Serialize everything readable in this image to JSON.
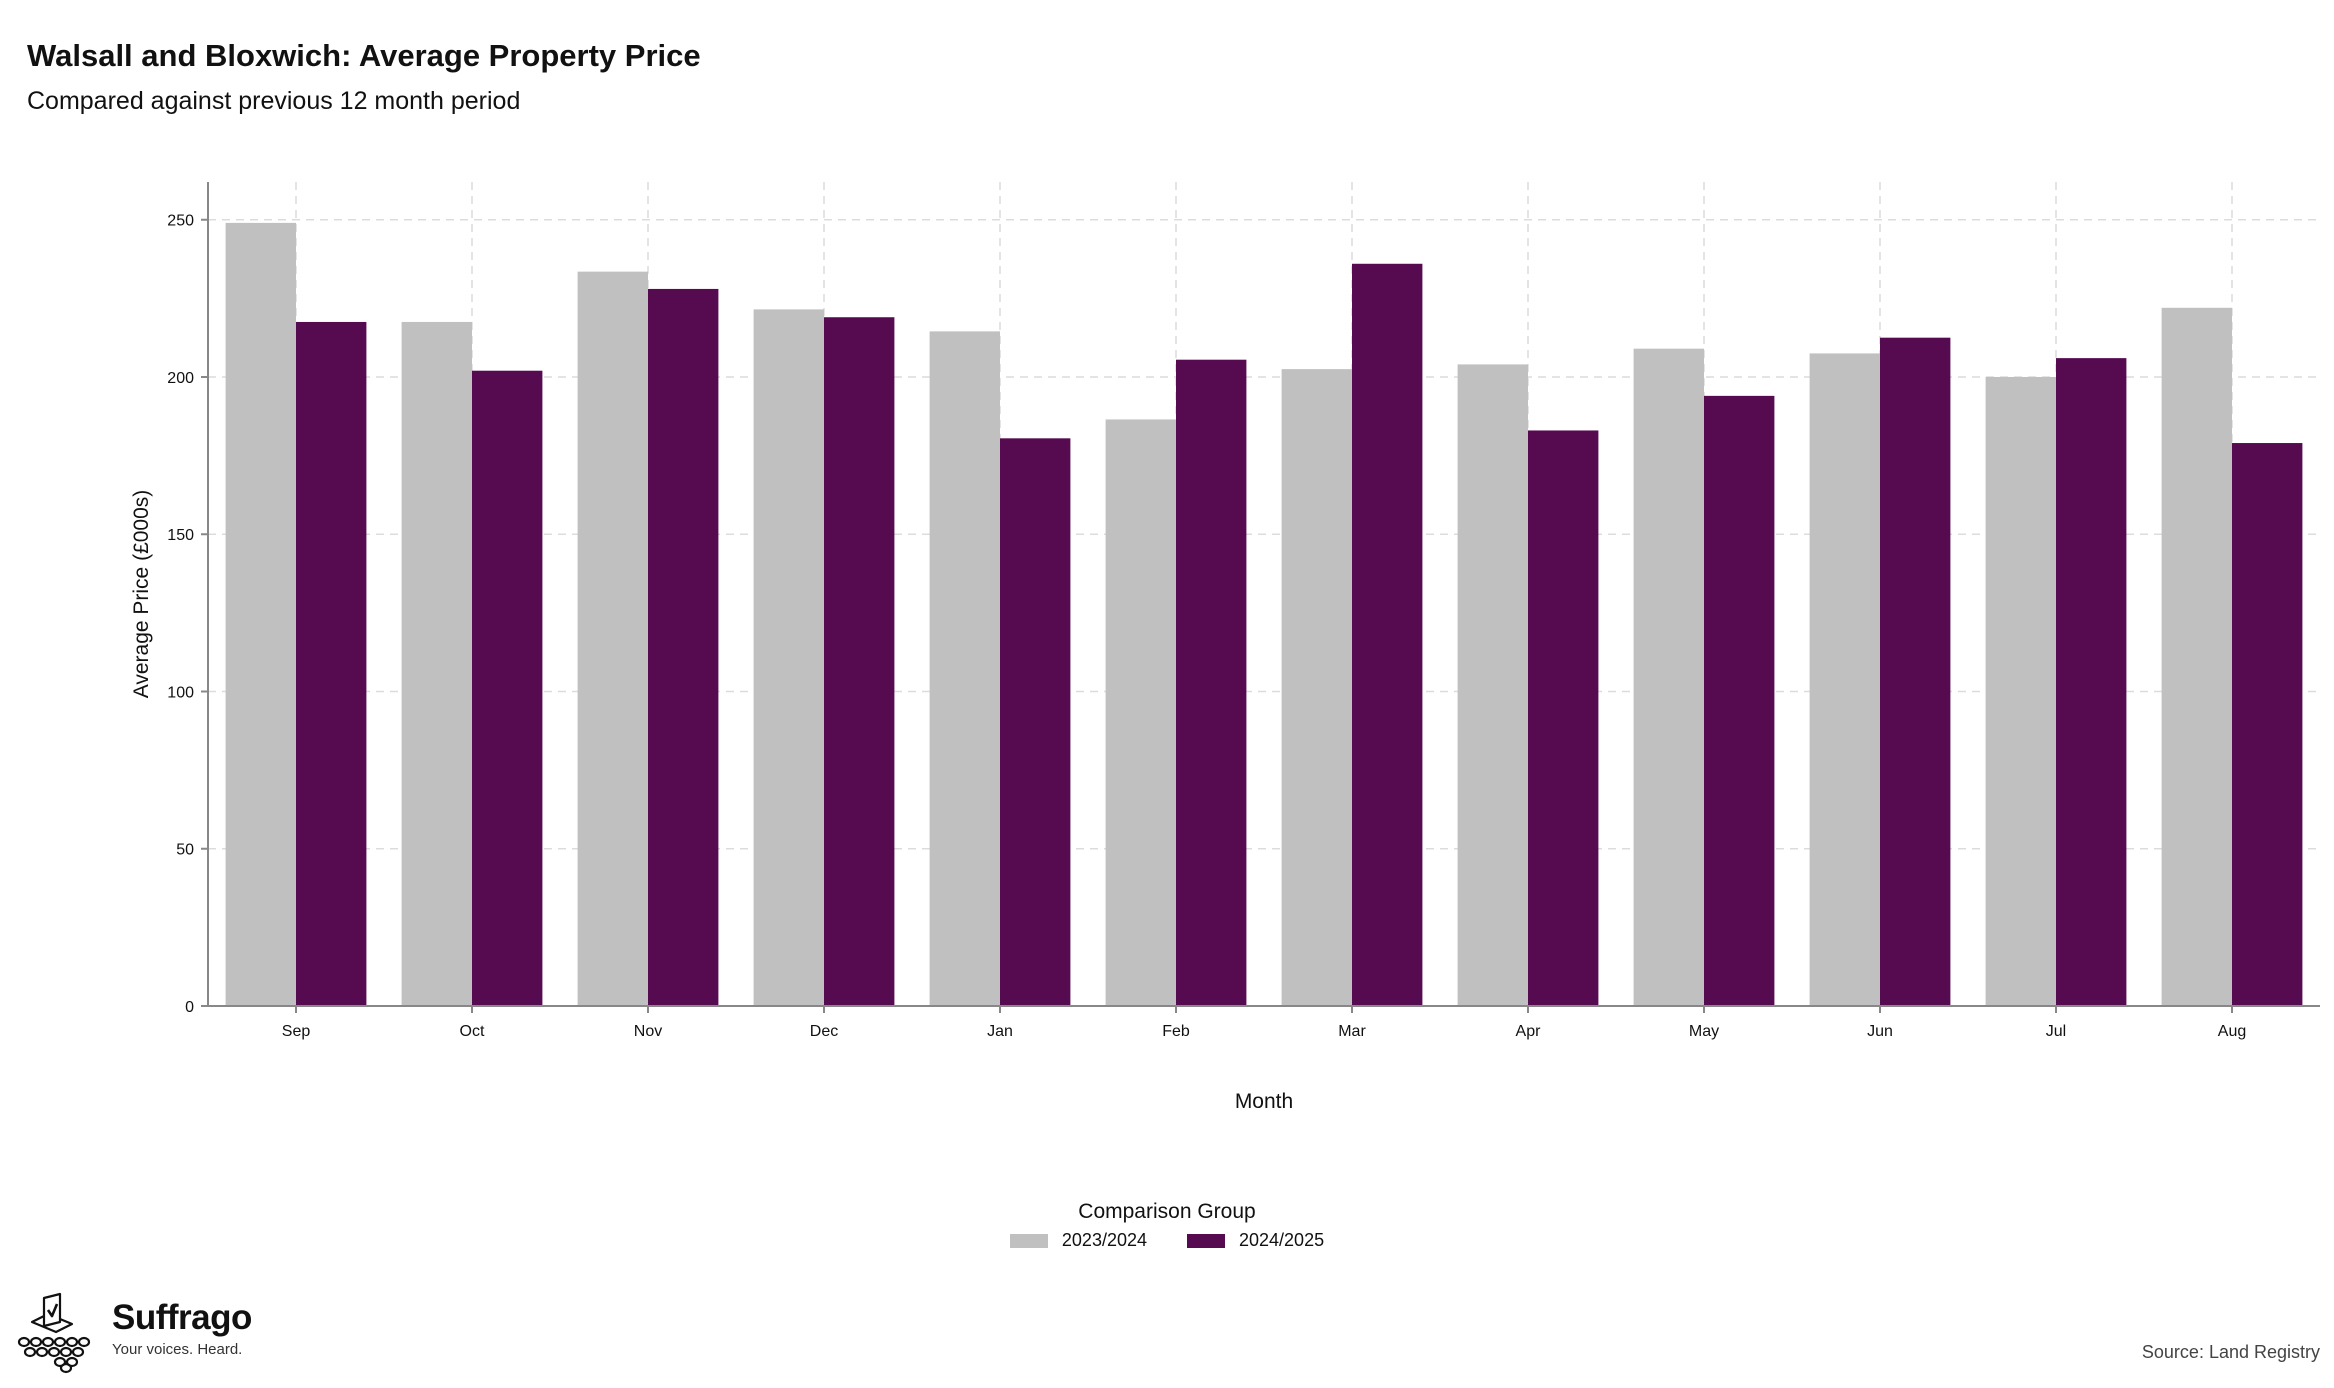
{
  "chart_data": {
    "type": "bar",
    "title": "Walsall and Bloxwich: Average Property Price",
    "subtitle": "Compared against previous 12 month period",
    "xlabel": "Month",
    "ylabel": "Average Price (£000s)",
    "categories": [
      "Sep",
      "Oct",
      "Nov",
      "Dec",
      "Jan",
      "Feb",
      "Mar",
      "Apr",
      "May",
      "Jun",
      "Jul",
      "Aug"
    ],
    "series": [
      {
        "name": "2023/2024",
        "color": "#c0c0c0",
        "values": [
          249,
          217.5,
          233.5,
          221.5,
          214.5,
          186.5,
          202.5,
          204,
          209,
          207.5,
          200,
          222
        ]
      },
      {
        "name": "2024/2025",
        "color": "#560b51",
        "values": [
          217.5,
          202,
          228,
          219,
          180.5,
          205.5,
          236,
          183,
          194,
          212.5,
          206,
          179
        ]
      }
    ],
    "ylim": [
      0,
      262
    ],
    "yticks": [
      0,
      50,
      100,
      150,
      200,
      250
    ],
    "grid": true,
    "legend": {
      "title": "Comparison Group",
      "placement": "bottom"
    }
  },
  "brand": {
    "name": "Suffrago",
    "tagline": "Your voices. Heard.",
    "logo_icon": "ballot-box-icon"
  },
  "source": "Source: Land Registry"
}
